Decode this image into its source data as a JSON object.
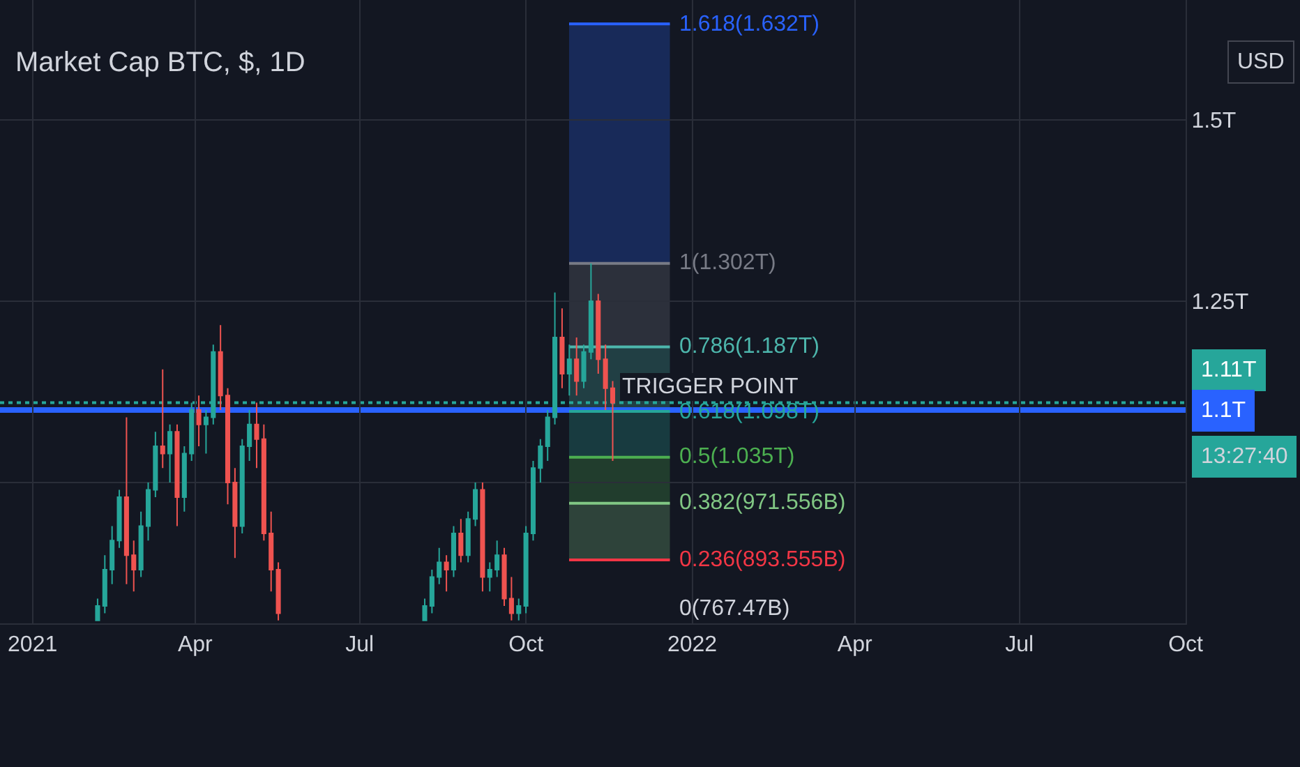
{
  "chart_data": {
    "type": "candlestick",
    "title": "Market Cap BTC, $, 1D",
    "x": [
      "2021-02-06",
      "2021-02-10",
      "2021-02-14",
      "2021-02-18",
      "2021-02-22",
      "2021-02-26",
      "2021-03-02",
      "2021-03-06",
      "2021-03-10",
      "2021-03-14",
      "2021-03-18",
      "2021-03-22",
      "2021-03-26",
      "2021-03-30",
      "2021-04-03",
      "2021-04-07",
      "2021-04-11",
      "2021-04-15",
      "2021-04-19",
      "2021-04-23",
      "2021-04-27",
      "2021-05-01",
      "2021-05-05",
      "2021-05-09",
      "2021-05-13",
      "2021-05-17",
      "2021-08-06",
      "2021-08-10",
      "2021-08-14",
      "2021-08-18",
      "2021-08-22",
      "2021-08-26",
      "2021-08-30",
      "2021-09-03",
      "2021-09-07",
      "2021-09-11",
      "2021-09-15",
      "2021-09-19",
      "2021-09-23",
      "2021-09-27",
      "2021-10-01",
      "2021-10-05",
      "2021-10-09",
      "2021-10-13",
      "2021-10-17",
      "2021-10-21",
      "2021-10-25",
      "2021-10-29",
      "2021-11-02",
      "2021-11-06",
      "2021-11-10",
      "2021-11-14",
      "2021-11-18"
    ],
    "ohlc": [
      [
        0.81,
        0.84,
        0.81,
        0.83
      ],
      [
        0.83,
        0.9,
        0.82,
        0.88
      ],
      [
        0.88,
        0.94,
        0.86,
        0.92
      ],
      [
        0.92,
        0.99,
        0.91,
        0.98
      ],
      [
        0.98,
        1.09,
        0.86,
        0.9
      ],
      [
        0.9,
        0.92,
        0.85,
        0.88
      ],
      [
        0.88,
        0.96,
        0.87,
        0.94
      ],
      [
        0.94,
        1.0,
        0.92,
        0.99
      ],
      [
        0.99,
        1.07,
        0.98,
        1.05
      ],
      [
        1.05,
        1.156,
        1.02,
        1.04
      ],
      [
        1.04,
        1.08,
        1.0,
        1.07
      ],
      [
        1.07,
        1.08,
        0.94,
        0.98
      ],
      [
        0.98,
        1.05,
        0.96,
        1.04
      ],
      [
        1.04,
        1.11,
        1.03,
        1.1
      ],
      [
        1.1,
        1.12,
        1.05,
        1.08
      ],
      [
        1.08,
        1.1,
        1.04,
        1.09
      ],
      [
        1.09,
        1.19,
        1.08,
        1.18
      ],
      [
        1.18,
        1.217,
        1.1,
        1.12
      ],
      [
        1.12,
        1.13,
        0.97,
        1.0
      ],
      [
        1.0,
        1.02,
        0.896,
        0.94
      ],
      [
        0.94,
        1.06,
        0.93,
        1.05
      ],
      [
        1.05,
        1.1,
        1.03,
        1.08
      ],
      [
        1.08,
        1.11,
        1.02,
        1.06
      ],
      [
        1.06,
        1.08,
        0.92,
        0.93
      ],
      [
        0.93,
        0.96,
        0.85,
        0.88
      ],
      [
        0.88,
        0.89,
        0.81,
        0.82
      ],
      [
        0.81,
        0.84,
        0.81,
        0.83
      ],
      [
        0.83,
        0.88,
        0.82,
        0.87
      ],
      [
        0.87,
        0.91,
        0.86,
        0.89
      ],
      [
        0.89,
        0.9,
        0.85,
        0.88
      ],
      [
        0.88,
        0.94,
        0.87,
        0.93
      ],
      [
        0.93,
        0.95,
        0.89,
        0.9
      ],
      [
        0.9,
        0.96,
        0.89,
        0.95
      ],
      [
        0.95,
        1.0,
        0.94,
        0.99
      ],
      [
        0.99,
        1.0,
        0.85,
        0.87
      ],
      [
        0.87,
        0.89,
        0.85,
        0.88
      ],
      [
        0.88,
        0.92,
        0.87,
        0.9
      ],
      [
        0.9,
        0.91,
        0.83,
        0.84
      ],
      [
        0.84,
        0.87,
        0.81,
        0.82
      ],
      [
        0.82,
        0.84,
        0.81,
        0.83
      ],
      [
        0.83,
        0.94,
        0.82,
        0.93
      ],
      [
        0.93,
        1.03,
        0.92,
        1.02
      ],
      [
        1.02,
        1.06,
        1.0,
        1.05
      ],
      [
        1.05,
        1.1,
        1.03,
        1.09
      ],
      [
        1.09,
        1.262,
        1.08,
        1.2
      ],
      [
        1.2,
        1.24,
        1.13,
        1.15
      ],
      [
        1.15,
        1.19,
        1.12,
        1.17
      ],
      [
        1.17,
        1.2,
        1.12,
        1.14
      ],
      [
        1.14,
        1.19,
        1.13,
        1.18
      ],
      [
        1.18,
        1.302,
        1.17,
        1.25
      ],
      [
        1.25,
        1.26,
        1.15,
        1.17
      ],
      [
        1.17,
        1.19,
        1.1,
        1.13
      ],
      [
        1.13,
        1.14,
        1.03,
        1.11
      ]
    ],
    "xlim": [
      "2020-12-14",
      "2022-10-01"
    ],
    "xticks": [
      {
        "value": "2021-01-01",
        "label": "2021"
      },
      {
        "value": "2021-04-01",
        "label": "Apr"
      },
      {
        "value": "2021-07-01",
        "label": "Jul"
      },
      {
        "value": "2021-10-01",
        "label": "Oct"
      },
      {
        "value": "2022-01-01",
        "label": "2022"
      },
      {
        "value": "2022-04-01",
        "label": "Apr"
      },
      {
        "value": "2022-07-01",
        "label": "Jul"
      },
      {
        "value": "2022-10-01",
        "label": "Oct"
      }
    ],
    "ylim": [
      0.806,
      1.665
    ],
    "yticks": [
      {
        "value": 1.0,
        "label": null
      },
      {
        "value": 1.25,
        "label": "1.25T"
      },
      {
        "value": 1.5,
        "label": "1.5T"
      }
    ],
    "grid": true,
    "ref_lines": [
      {
        "axis": "y",
        "value": 1.11,
        "label": "1.11T",
        "color": "#26a69a",
        "line_style": "dotted"
      },
      {
        "axis": "y",
        "value": 1.1,
        "label": "1.1T",
        "color": "#2962ff",
        "line_style": "solid"
      },
      {
        "axis": "y",
        "value": 1.632,
        "label": "1.618(1.632T)",
        "color": "#2962ff",
        "line_style": "solid"
      },
      {
        "axis": "y",
        "value": 1.302,
        "label": "1(1.302T)",
        "color": "#787b86",
        "line_style": "solid"
      },
      {
        "axis": "y",
        "value": 1.187,
        "label": "0.786(1.187T)",
        "color": "#4db6ac",
        "line_style": "solid"
      },
      {
        "axis": "y",
        "value": 1.098,
        "label": "0.618(1.098T)",
        "color": "#26a69a",
        "line_style": "solid"
      },
      {
        "axis": "y",
        "value": 1.035,
        "label": "0.5(1.035T)",
        "color": "#4caf50",
        "line_style": "solid"
      },
      {
        "axis": "y",
        "value": 0.971556,
        "label": "0.382(971.556B)",
        "color": "#81c784",
        "line_style": "solid"
      },
      {
        "axis": "y",
        "value": 0.893555,
        "label": "0.236(893.555B)",
        "color": "#f23645",
        "line_style": "solid"
      }
    ],
    "bands": [
      {
        "axis": "y",
        "from": 1.302,
        "to": 1.632,
        "color": "#2962ff"
      },
      {
        "axis": "y",
        "from": 1.187,
        "to": 1.302,
        "color": "#787b86"
      },
      {
        "axis": "y",
        "from": 1.098,
        "to": 1.187,
        "color": "#4db6ac"
      },
      {
        "axis": "y",
        "from": 1.035,
        "to": 1.098,
        "color": "#26a69a"
      },
      {
        "axis": "y",
        "from": 0.971556,
        "to": 1.035,
        "color": "#4caf50"
      },
      {
        "axis": "y",
        "from": 0.893555,
        "to": 0.971556,
        "color": "#81c784"
      }
    ],
    "annotations": [
      "TRIGGER POINT",
      "13:27:40",
      "0(767.47B)",
      "USD"
    ]
  }
}
